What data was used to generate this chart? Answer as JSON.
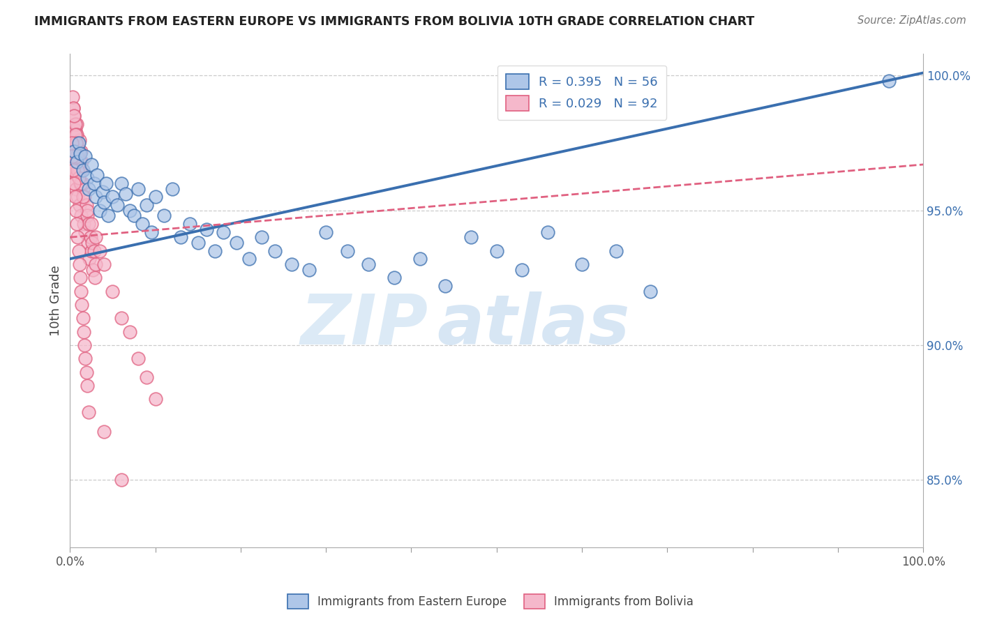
{
  "title": "IMMIGRANTS FROM EASTERN EUROPE VS IMMIGRANTS FROM BOLIVIA 10TH GRADE CORRELATION CHART",
  "source": "Source: ZipAtlas.com",
  "ylabel": "10th Grade",
  "xmin": 0.0,
  "xmax": 1.0,
  "ymin": 0.825,
  "ymax": 1.008,
  "right_yticks": [
    0.85,
    0.9,
    0.95,
    1.0
  ],
  "right_yticklabels": [
    "85.0%",
    "90.0%",
    "95.0%",
    "100.0%"
  ],
  "blue_R": 0.395,
  "blue_N": 56,
  "pink_R": 0.029,
  "pink_N": 92,
  "blue_color": "#aec6e8",
  "pink_color": "#f5b8cb",
  "blue_line_color": "#3a6faf",
  "pink_line_color": "#e06080",
  "legend_label_blue": "Immigrants from Eastern Europe",
  "legend_label_pink": "Immigrants from Bolivia",
  "watermark_zip": "ZIP",
  "watermark_atlas": "atlas",
  "blue_line_x0": 0.0,
  "blue_line_y0": 0.932,
  "blue_line_x1": 1.0,
  "blue_line_y1": 1.001,
  "pink_line_x0": 0.0,
  "pink_line_y0": 0.94,
  "pink_line_x1": 1.0,
  "pink_line_y1": 0.967,
  "blue_scatter_x": [
    0.005,
    0.008,
    0.01,
    0.012,
    0.015,
    0.018,
    0.02,
    0.022,
    0.025,
    0.028,
    0.03,
    0.032,
    0.035,
    0.038,
    0.04,
    0.042,
    0.045,
    0.05,
    0.055,
    0.06,
    0.065,
    0.07,
    0.075,
    0.08,
    0.085,
    0.09,
    0.095,
    0.1,
    0.11,
    0.12,
    0.13,
    0.14,
    0.15,
    0.16,
    0.17,
    0.18,
    0.195,
    0.21,
    0.225,
    0.24,
    0.26,
    0.28,
    0.3,
    0.325,
    0.35,
    0.38,
    0.41,
    0.44,
    0.47,
    0.5,
    0.53,
    0.56,
    0.6,
    0.64,
    0.68,
    0.96
  ],
  "blue_scatter_y": [
    0.972,
    0.968,
    0.975,
    0.971,
    0.965,
    0.97,
    0.962,
    0.958,
    0.967,
    0.96,
    0.955,
    0.963,
    0.95,
    0.957,
    0.953,
    0.96,
    0.948,
    0.955,
    0.952,
    0.96,
    0.956,
    0.95,
    0.948,
    0.958,
    0.945,
    0.952,
    0.942,
    0.955,
    0.948,
    0.958,
    0.94,
    0.945,
    0.938,
    0.943,
    0.935,
    0.942,
    0.938,
    0.932,
    0.94,
    0.935,
    0.93,
    0.928,
    0.942,
    0.935,
    0.93,
    0.925,
    0.932,
    0.922,
    0.94,
    0.935,
    0.928,
    0.942,
    0.93,
    0.935,
    0.92,
    0.998
  ],
  "pink_scatter_x": [
    0.001,
    0.002,
    0.003,
    0.004,
    0.005,
    0.006,
    0.007,
    0.008,
    0.009,
    0.01,
    0.011,
    0.012,
    0.013,
    0.014,
    0.015,
    0.016,
    0.017,
    0.018,
    0.019,
    0.02,
    0.021,
    0.022,
    0.023,
    0.024,
    0.025,
    0.026,
    0.027,
    0.028,
    0.029,
    0.03,
    0.006,
    0.007,
    0.008,
    0.009,
    0.01,
    0.011,
    0.012,
    0.013,
    0.014,
    0.015,
    0.004,
    0.005,
    0.006,
    0.007,
    0.008,
    0.009,
    0.01,
    0.011,
    0.012,
    0.013,
    0.003,
    0.004,
    0.005,
    0.006,
    0.007,
    0.008,
    0.009,
    0.01,
    0.015,
    0.02,
    0.025,
    0.03,
    0.035,
    0.04,
    0.05,
    0.06,
    0.07,
    0.08,
    0.09,
    0.1,
    0.002,
    0.003,
    0.004,
    0.005,
    0.006,
    0.007,
    0.008,
    0.009,
    0.01,
    0.011,
    0.012,
    0.013,
    0.014,
    0.015,
    0.016,
    0.017,
    0.018,
    0.019,
    0.02,
    0.022,
    0.04,
    0.06
  ],
  "pink_scatter_y": [
    0.972,
    0.968,
    0.975,
    0.965,
    0.96,
    0.97,
    0.958,
    0.963,
    0.955,
    0.968,
    0.952,
    0.96,
    0.948,
    0.965,
    0.958,
    0.945,
    0.955,
    0.942,
    0.952,
    0.948,
    0.938,
    0.945,
    0.932,
    0.94,
    0.935,
    0.938,
    0.928,
    0.935,
    0.925,
    0.93,
    0.98,
    0.978,
    0.982,
    0.975,
    0.97,
    0.976,
    0.965,
    0.972,
    0.968,
    0.96,
    0.988,
    0.985,
    0.982,
    0.975,
    0.978,
    0.97,
    0.972,
    0.965,
    0.968,
    0.96,
    0.992,
    0.988,
    0.985,
    0.978,
    0.975,
    0.97,
    0.965,
    0.962,
    0.955,
    0.95,
    0.945,
    0.94,
    0.935,
    0.93,
    0.92,
    0.91,
    0.905,
    0.895,
    0.888,
    0.88,
    0.975,
    0.97,
    0.965,
    0.96,
    0.955,
    0.95,
    0.945,
    0.94,
    0.935,
    0.93,
    0.925,
    0.92,
    0.915,
    0.91,
    0.905,
    0.9,
    0.895,
    0.89,
    0.885,
    0.875,
    0.868,
    0.85
  ]
}
